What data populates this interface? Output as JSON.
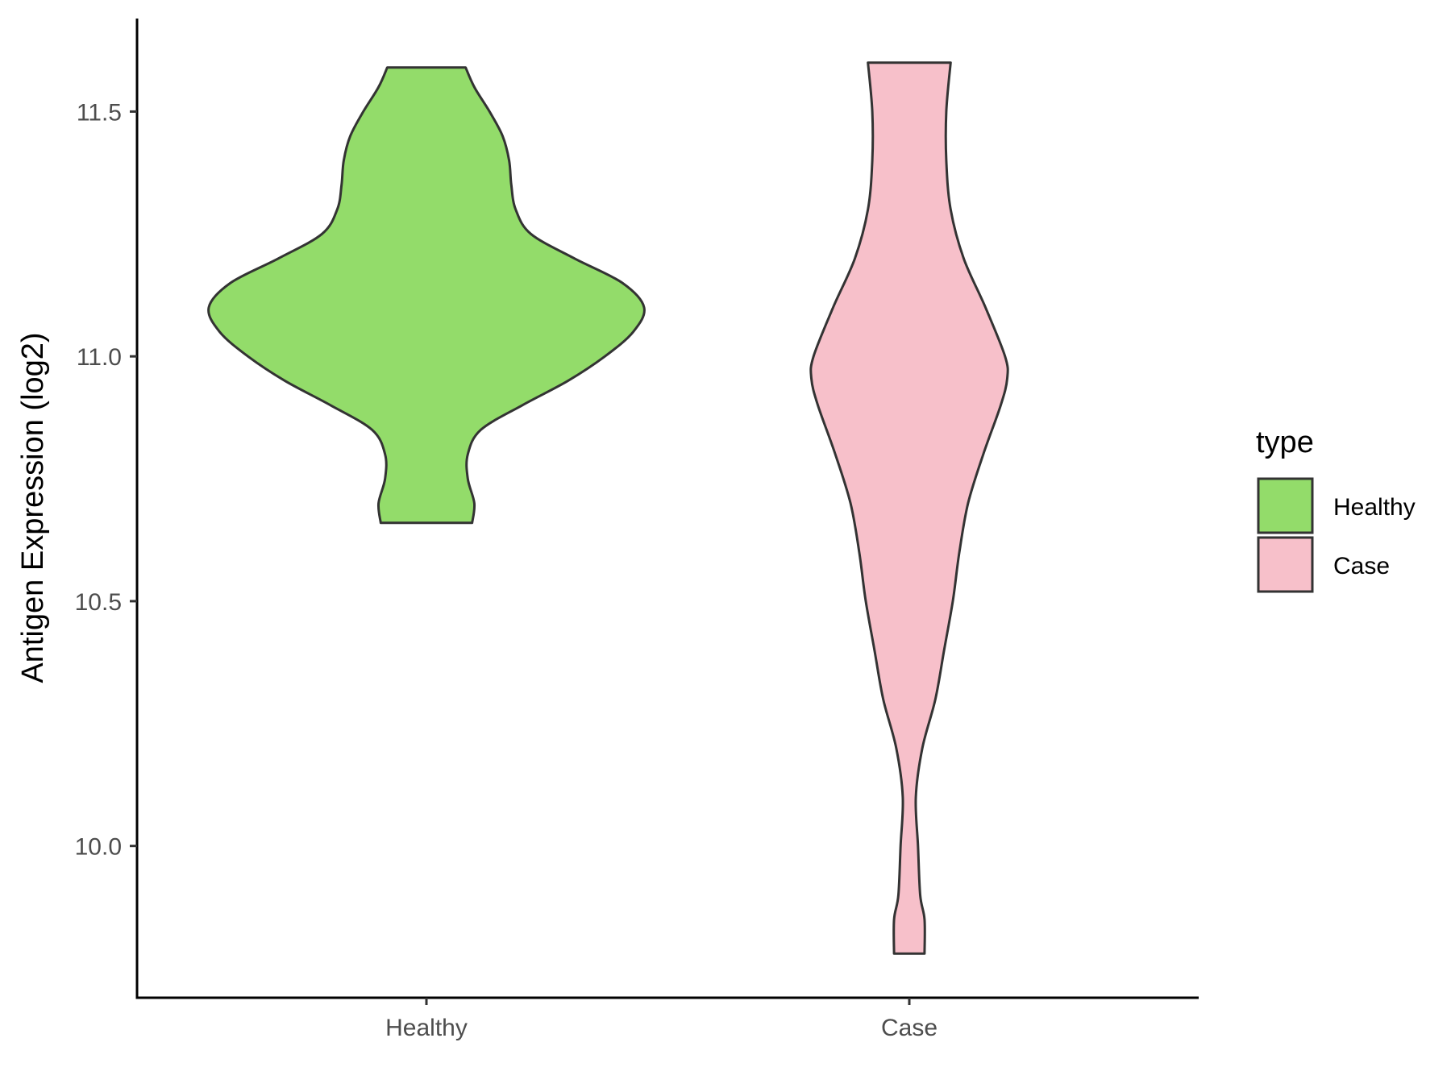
{
  "chart_data": {
    "type": "violin",
    "title": "",
    "xlabel": "",
    "ylabel": "Antigen Expression (log2)",
    "categories": [
      "Healthy",
      "Case"
    ],
    "ylim": [
      9.69,
      11.69
    ],
    "yticks": [
      10.0,
      10.5,
      11.0,
      11.5
    ],
    "ytick_labels": [
      "10.0",
      "10.5",
      "11.0",
      "11.5"
    ],
    "grid": false,
    "legend": {
      "title": "type",
      "position": "right",
      "entries": [
        "Healthy",
        "Case"
      ]
    },
    "colors": {
      "Healthy": "#93DC6A",
      "Case": "#F7C0CA",
      "outline": "#333333"
    },
    "series": [
      {
        "name": "Healthy",
        "min": 10.66,
        "max": 11.59,
        "density_profile": [
          {
            "y": 10.66,
            "w": 0.21
          },
          {
            "y": 10.7,
            "w": 0.22
          },
          {
            "y": 10.75,
            "w": 0.19
          },
          {
            "y": 10.8,
            "w": 0.19
          },
          {
            "y": 10.85,
            "w": 0.25
          },
          {
            "y": 10.9,
            "w": 0.44
          },
          {
            "y": 10.95,
            "w": 0.65
          },
          {
            "y": 11.0,
            "w": 0.82
          },
          {
            "y": 11.05,
            "w": 0.95
          },
          {
            "y": 11.1,
            "w": 1.0
          },
          {
            "y": 11.15,
            "w": 0.9
          },
          {
            "y": 11.2,
            "w": 0.68
          },
          {
            "y": 11.25,
            "w": 0.48
          },
          {
            "y": 11.3,
            "w": 0.41
          },
          {
            "y": 11.35,
            "w": 0.39
          },
          {
            "y": 11.4,
            "w": 0.38
          },
          {
            "y": 11.45,
            "w": 0.35
          },
          {
            "y": 11.5,
            "w": 0.29
          },
          {
            "y": 11.55,
            "w": 0.22
          },
          {
            "y": 11.59,
            "w": 0.18
          }
        ]
      },
      {
        "name": "Case",
        "min": 9.78,
        "max": 11.6,
        "density_profile": [
          {
            "y": 9.78,
            "w": 0.07
          },
          {
            "y": 9.85,
            "w": 0.07
          },
          {
            "y": 9.9,
            "w": 0.05
          },
          {
            "y": 10.0,
            "w": 0.04
          },
          {
            "y": 10.1,
            "w": 0.03
          },
          {
            "y": 10.2,
            "w": 0.06
          },
          {
            "y": 10.3,
            "w": 0.12
          },
          {
            "y": 10.4,
            "w": 0.16
          },
          {
            "y": 10.5,
            "w": 0.2
          },
          {
            "y": 10.6,
            "w": 0.23
          },
          {
            "y": 10.7,
            "w": 0.27
          },
          {
            "y": 10.8,
            "w": 0.34
          },
          {
            "y": 10.9,
            "w": 0.42
          },
          {
            "y": 10.955,
            "w": 0.45
          },
          {
            "y": 11.0,
            "w": 0.44
          },
          {
            "y": 11.1,
            "w": 0.35
          },
          {
            "y": 11.2,
            "w": 0.25
          },
          {
            "y": 11.3,
            "w": 0.19
          },
          {
            "y": 11.4,
            "w": 0.17
          },
          {
            "y": 11.5,
            "w": 0.17
          },
          {
            "y": 11.6,
            "w": 0.19
          }
        ]
      }
    ]
  }
}
